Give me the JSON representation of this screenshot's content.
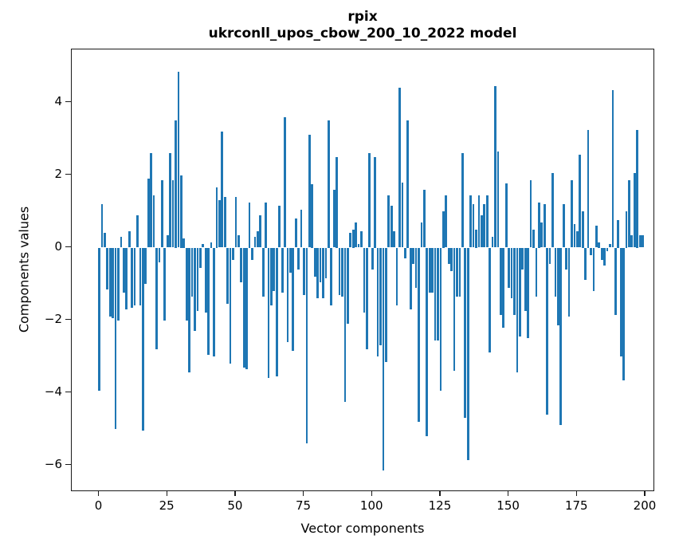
{
  "figure": {
    "title_line1": "rpix",
    "title_line2": "ukrconll_upos_cbow_200_10_2022 model",
    "xlabel": "Vector components",
    "ylabel": "Components values"
  },
  "chart_data": {
    "type": "bar",
    "title": "rpix\nukrconll_upos_cbow_200_10_2022 model",
    "xlabel": "Vector components",
    "ylabel": "Components values",
    "legend": null,
    "grid": false,
    "bar_color": "#1f77b4",
    "axis_color": "#1a1a1a",
    "x_start": 0,
    "n_bars": 200,
    "xticks": [
      0,
      25,
      50,
      75,
      100,
      125,
      150,
      175,
      200
    ],
    "yticks": [
      4,
      2,
      0,
      -2,
      -4,
      -6
    ],
    "xlim": [
      -10.5,
      209.5
    ],
    "ylim": [
      -6.7,
      5.45
    ],
    "values": [
      -3.95,
      1.2,
      0.4,
      -1.15,
      -1.9,
      -1.95,
      -5.0,
      -2.0,
      0.3,
      -1.25,
      -1.7,
      0.45,
      -1.65,
      -1.6,
      0.9,
      -1.6,
      -5.05,
      -1.0,
      1.9,
      2.6,
      1.45,
      -2.8,
      -0.4,
      1.85,
      -2.0,
      0.35,
      2.6,
      1.85,
      3.5,
      4.85,
      2.0,
      0.25,
      -2.0,
      -3.45,
      -1.35,
      -2.3,
      -1.75,
      -0.55,
      0.1,
      -1.8,
      -2.95,
      0.15,
      -3.0,
      1.65,
      1.3,
      3.2,
      1.4,
      -1.55,
      -3.2,
      -0.35,
      1.4,
      0.35,
      -0.95,
      -3.3,
      -3.35,
      1.25,
      -0.35,
      0.3,
      0.45,
      0.9,
      -1.35,
      1.25,
      -3.6,
      -1.6,
      -1.2,
      -3.55,
      1.15,
      -1.25,
      3.6,
      -2.6,
      -0.7,
      -2.85,
      0.8,
      -0.6,
      1.05,
      -1.3,
      -5.4,
      3.1,
      1.75,
      -0.8,
      -1.4,
      -0.95,
      -1.4,
      -0.85,
      3.5,
      -1.6,
      1.6,
      2.5,
      -1.3,
      -1.35,
      -4.25,
      -2.1,
      0.4,
      0.5,
      0.7,
      0.1,
      0.45,
      -1.8,
      -2.8,
      2.6,
      -0.6,
      2.5,
      -3.0,
      -2.7,
      -6.15,
      -3.15,
      1.43,
      1.15,
      0.45,
      -1.6,
      4.4,
      1.8,
      -0.3,
      3.5,
      -1.7,
      -0.45,
      -1.1,
      -4.8,
      0.7,
      1.6,
      -5.2,
      -1.25,
      -1.25,
      -2.55,
      -2.55,
      -3.95,
      1.0,
      1.45,
      -0.45,
      -0.65,
      -3.4,
      -1.35,
      -1.35,
      2.6,
      -4.7,
      -5.85,
      1.45,
      1.2,
      0.5,
      1.45,
      0.9,
      1.2,
      1.45,
      -2.9,
      0.3,
      4.45,
      2.65,
      -1.85,
      -2.2,
      1.77,
      -1.1,
      -1.4,
      -1.85,
      -3.45,
      -2.45,
      -0.6,
      -1.75,
      -2.5,
      1.85,
      0.5,
      -1.35,
      1.25,
      0.7,
      1.2,
      -4.6,
      -0.45,
      2.05,
      -1.35,
      -2.15,
      -4.9,
      1.2,
      -0.6,
      -1.9,
      1.85,
      0.65,
      0.45,
      2.55,
      1.0,
      -0.9,
      3.25,
      -0.2,
      -1.2,
      0.6,
      0.15,
      -0.35,
      -0.5,
      -0.1,
      0.1,
      4.35,
      -1.85,
      0.75,
      -3.0,
      -3.65,
      1.0,
      1.85,
      0.35,
      2.05,
      3.25,
      0.35,
      0.35
    ]
  }
}
